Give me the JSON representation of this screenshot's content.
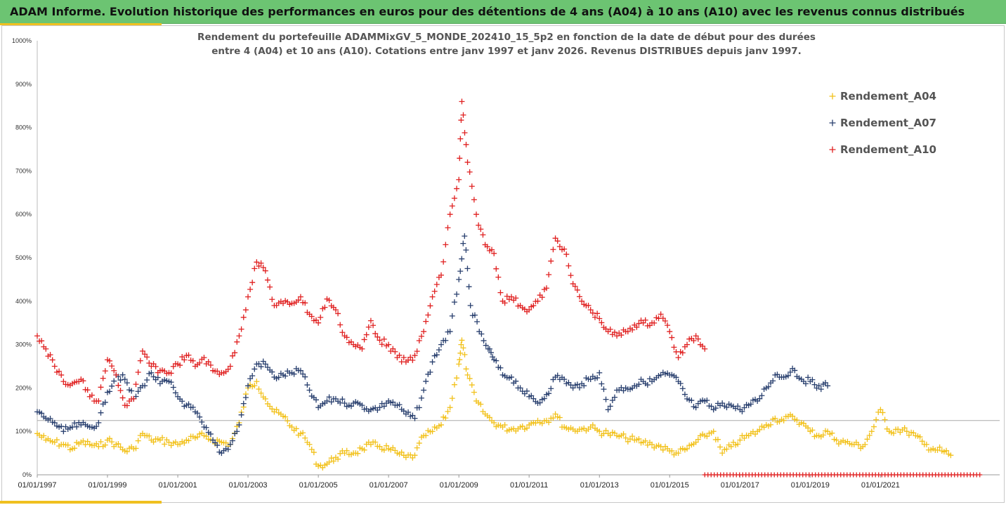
{
  "header": {
    "title": "ADAM Informe. Evolution historique des performances en euros pour des détentions de 4 ans (A04) à 10 ans (A10) avec les revenus connus distribués"
  },
  "chart_data": {
    "type": "scatter",
    "title": "",
    "subtitle_lines": [
      "Rendement du portefeuille ADAMMixGV_5_MONDE_202410_15_5p2 en fonction de la date de début pour des durées",
      "entre 4 (A04) et 10 ans (A10). Cotations entre janv 1997 et janv 2026. Revenus DISTRIBUES depuis janv 1997."
    ],
    "xlabel": "",
    "ylabel": "",
    "x_ticks": [
      "01/01/1997",
      "01/01/1999",
      "01/01/2001",
      "01/01/2003",
      "01/01/2005",
      "01/01/2007",
      "01/01/2009",
      "01/01/2011",
      "01/01/2013",
      "01/01/2015",
      "01/01/2017",
      "01/01/2019",
      "01/01/2021"
    ],
    "xlim": [
      "1997-01-01",
      "2023-11-01"
    ],
    "y_ticks": [
      "0%",
      "100%",
      "200%",
      "300%",
      "400%",
      "500%",
      "600%",
      "700%",
      "800%",
      "900%",
      "1000%"
    ],
    "ylim": [
      0,
      1000
    ],
    "legend_position": "right",
    "reference_line_y": 125,
    "series": [
      {
        "name": "Rendement_A04",
        "color": "#f2c11a",
        "marker": "+",
        "points": [
          [
            "1997-01",
            95
          ],
          [
            "1997-04",
            80
          ],
          [
            "1997-07",
            75
          ],
          [
            "1997-10",
            70
          ],
          [
            "1998-01",
            60
          ],
          [
            "1998-04",
            75
          ],
          [
            "1998-07",
            70
          ],
          [
            "1998-10",
            65
          ],
          [
            "1999-01",
            80
          ],
          [
            "1999-04",
            70
          ],
          [
            "1999-07",
            55
          ],
          [
            "1999-10",
            60
          ],
          [
            "2000-01",
            95
          ],
          [
            "2000-04",
            80
          ],
          [
            "2000-07",
            80
          ],
          [
            "2000-10",
            75
          ],
          [
            "2001-01",
            70
          ],
          [
            "2001-04",
            80
          ],
          [
            "2001-07",
            85
          ],
          [
            "2001-10",
            90
          ],
          [
            "2002-01",
            80
          ],
          [
            "2002-04",
            75
          ],
          [
            "2002-07",
            70
          ],
          [
            "2002-10",
            120
          ],
          [
            "2003-01",
            200
          ],
          [
            "2003-04",
            215
          ],
          [
            "2003-07",
            175
          ],
          [
            "2003-10",
            145
          ],
          [
            "2004-01",
            135
          ],
          [
            "2004-04",
            110
          ],
          [
            "2004-07",
            95
          ],
          [
            "2004-10",
            70
          ],
          [
            "2005-01",
            20
          ],
          [
            "2005-04",
            25
          ],
          [
            "2005-07",
            40
          ],
          [
            "2005-10",
            50
          ],
          [
            "2006-01",
            50
          ],
          [
            "2006-04",
            60
          ],
          [
            "2006-07",
            70
          ],
          [
            "2006-10",
            65
          ],
          [
            "2007-01",
            60
          ],
          [
            "2007-04",
            50
          ],
          [
            "2007-07",
            40
          ],
          [
            "2007-10",
            45
          ],
          [
            "2008-01",
            90
          ],
          [
            "2008-04",
            100
          ],
          [
            "2008-07",
            115
          ],
          [
            "2008-10",
            155
          ],
          [
            "2009-01",
            255
          ],
          [
            "2009-02",
            310
          ],
          [
            "2009-04",
            230
          ],
          [
            "2009-07",
            170
          ],
          [
            "2009-10",
            140
          ],
          [
            "2010-01",
            120
          ],
          [
            "2010-04",
            110
          ],
          [
            "2010-07",
            105
          ],
          [
            "2010-10",
            110
          ],
          [
            "2011-01",
            115
          ],
          [
            "2011-04",
            125
          ],
          [
            "2011-07",
            125
          ],
          [
            "2011-10",
            140
          ],
          [
            "2012-01",
            110
          ],
          [
            "2012-04",
            105
          ],
          [
            "2012-07",
            105
          ],
          [
            "2012-10",
            110
          ],
          [
            "2013-01",
            100
          ],
          [
            "2013-04",
            95
          ],
          [
            "2013-07",
            90
          ],
          [
            "2013-10",
            85
          ],
          [
            "2014-01",
            80
          ],
          [
            "2014-04",
            75
          ],
          [
            "2014-07",
            70
          ],
          [
            "2014-10",
            65
          ],
          [
            "2015-01",
            55
          ],
          [
            "2015-04",
            50
          ],
          [
            "2015-07",
            60
          ],
          [
            "2015-10",
            75
          ],
          [
            "2016-01",
            90
          ],
          [
            "2016-04",
            100
          ],
          [
            "2016-07",
            50
          ],
          [
            "2016-10",
            65
          ],
          [
            "2017-01",
            80
          ],
          [
            "2017-04",
            90
          ],
          [
            "2017-07",
            100
          ],
          [
            "2017-10",
            115
          ],
          [
            "2018-01",
            130
          ],
          [
            "2018-04",
            125
          ],
          [
            "2018-07",
            135
          ],
          [
            "2018-10",
            120
          ],
          [
            "2019-01",
            100
          ],
          [
            "2019-04",
            90
          ],
          [
            "2019-07",
            100
          ],
          [
            "2019-10",
            80
          ],
          [
            "2020-01",
            75
          ],
          [
            "2020-04",
            70
          ],
          [
            "2020-07",
            65
          ],
          [
            "2020-10",
            100
          ],
          [
            "2021-01",
            150
          ],
          [
            "2021-04",
            100
          ],
          [
            "2021-07",
            105
          ],
          [
            "2021-10",
            100
          ],
          [
            "2022-01",
            90
          ],
          [
            "2022-04",
            70
          ],
          [
            "2022-07",
            60
          ],
          [
            "2022-10",
            55
          ],
          [
            "2023-01",
            45
          ]
        ]
      },
      {
        "name": "Rendement_A07",
        "color": "#283f6e",
        "marker": "+",
        "points": [
          [
            "1997-01",
            145
          ],
          [
            "1997-04",
            130
          ],
          [
            "1997-07",
            120
          ],
          [
            "1997-10",
            100
          ],
          [
            "1998-01",
            110
          ],
          [
            "1998-04",
            115
          ],
          [
            "1998-07",
            110
          ],
          [
            "1998-10",
            120
          ],
          [
            "1999-01",
            190
          ],
          [
            "1999-04",
            230
          ],
          [
            "1999-07",
            220
          ],
          [
            "1999-10",
            175
          ],
          [
            "2000-01",
            205
          ],
          [
            "2000-04",
            235
          ],
          [
            "2000-07",
            210
          ],
          [
            "2000-10",
            215
          ],
          [
            "2001-01",
            180
          ],
          [
            "2001-04",
            160
          ],
          [
            "2001-07",
            145
          ],
          [
            "2001-10",
            110
          ],
          [
            "2002-01",
            80
          ],
          [
            "2002-04",
            50
          ],
          [
            "2002-07",
            70
          ],
          [
            "2002-10",
            115
          ],
          [
            "2003-01",
            205
          ],
          [
            "2003-04",
            255
          ],
          [
            "2003-07",
            255
          ],
          [
            "2003-10",
            225
          ],
          [
            "2004-01",
            230
          ],
          [
            "2004-04",
            235
          ],
          [
            "2004-07",
            240
          ],
          [
            "2004-10",
            195
          ],
          [
            "2005-01",
            155
          ],
          [
            "2005-04",
            170
          ],
          [
            "2005-07",
            175
          ],
          [
            "2005-10",
            165
          ],
          [
            "2006-01",
            165
          ],
          [
            "2006-04",
            160
          ],
          [
            "2006-07",
            150
          ],
          [
            "2006-10",
            155
          ],
          [
            "2007-01",
            170
          ],
          [
            "2007-04",
            160
          ],
          [
            "2007-07",
            140
          ],
          [
            "2007-10",
            130
          ],
          [
            "2008-01",
            195
          ],
          [
            "2008-04",
            260
          ],
          [
            "2008-07",
            300
          ],
          [
            "2008-10",
            330
          ],
          [
            "2009-01",
            450
          ],
          [
            "2009-03",
            550
          ],
          [
            "2009-05",
            390
          ],
          [
            "2009-08",
            330
          ],
          [
            "2009-11",
            290
          ],
          [
            "2010-01",
            265
          ],
          [
            "2010-04",
            230
          ],
          [
            "2010-07",
            225
          ],
          [
            "2010-10",
            200
          ],
          [
            "2011-01",
            180
          ],
          [
            "2011-04",
            165
          ],
          [
            "2011-07",
            185
          ],
          [
            "2011-10",
            225
          ],
          [
            "2012-01",
            220
          ],
          [
            "2012-04",
            200
          ],
          [
            "2012-07",
            210
          ],
          [
            "2012-10",
            220
          ],
          [
            "2013-01",
            235
          ],
          [
            "2013-04",
            150
          ],
          [
            "2013-07",
            195
          ],
          [
            "2013-10",
            200
          ],
          [
            "2014-01",
            205
          ],
          [
            "2014-04",
            215
          ],
          [
            "2014-07",
            215
          ],
          [
            "2014-10",
            230
          ],
          [
            "2015-01",
            230
          ],
          [
            "2015-04",
            215
          ],
          [
            "2015-07",
            175
          ],
          [
            "2015-10",
            155
          ],
          [
            "2016-01",
            170
          ],
          [
            "2016-04",
            150
          ],
          [
            "2016-07",
            165
          ],
          [
            "2016-10",
            160
          ],
          [
            "2017-01",
            150
          ],
          [
            "2017-04",
            160
          ],
          [
            "2017-07",
            170
          ],
          [
            "2017-10",
            200
          ],
          [
            "2018-01",
            230
          ],
          [
            "2018-04",
            225
          ],
          [
            "2018-07",
            245
          ],
          [
            "2018-10",
            220
          ],
          [
            "2019-01",
            215
          ],
          [
            "2019-04",
            205
          ],
          [
            "2019-07",
            205
          ]
        ]
      },
      {
        "name": "Rendement_A10",
        "color": "#e02020",
        "marker": "+",
        "points": [
          [
            "1997-01",
            320
          ],
          [
            "1997-04",
            290
          ],
          [
            "1997-07",
            250
          ],
          [
            "1997-10",
            215
          ],
          [
            "1998-01",
            210
          ],
          [
            "1998-04",
            220
          ],
          [
            "1998-07",
            180
          ],
          [
            "1998-10",
            170
          ],
          [
            "1999-01",
            265
          ],
          [
            "1999-04",
            230
          ],
          [
            "1999-07",
            160
          ],
          [
            "1999-10",
            175
          ],
          [
            "2000-01",
            285
          ],
          [
            "2000-04",
            250
          ],
          [
            "2000-07",
            240
          ],
          [
            "2000-10",
            235
          ],
          [
            "2001-01",
            255
          ],
          [
            "2001-04",
            275
          ],
          [
            "2001-07",
            250
          ],
          [
            "2001-10",
            270
          ],
          [
            "2002-01",
            240
          ],
          [
            "2002-04",
            235
          ],
          [
            "2002-07",
            250
          ],
          [
            "2002-10",
            320
          ],
          [
            "2003-01",
            410
          ],
          [
            "2003-04",
            490
          ],
          [
            "2003-07",
            470
          ],
          [
            "2003-10",
            390
          ],
          [
            "2004-01",
            395
          ],
          [
            "2004-04",
            395
          ],
          [
            "2004-07",
            410
          ],
          [
            "2004-10",
            370
          ],
          [
            "2005-01",
            350
          ],
          [
            "2005-04",
            405
          ],
          [
            "2005-07",
            380
          ],
          [
            "2005-10",
            320
          ],
          [
            "2006-01",
            300
          ],
          [
            "2006-04",
            290
          ],
          [
            "2006-07",
            355
          ],
          [
            "2006-10",
            310
          ],
          [
            "2007-01",
            300
          ],
          [
            "2007-04",
            270
          ],
          [
            "2007-07",
            260
          ],
          [
            "2007-10",
            275
          ],
          [
            "2008-01",
            330
          ],
          [
            "2008-04",
            410
          ],
          [
            "2008-07",
            460
          ],
          [
            "2008-10",
            600
          ],
          [
            "2009-01",
            680
          ],
          [
            "2009-02",
            860
          ],
          [
            "2009-04",
            720
          ],
          [
            "2009-07",
            600
          ],
          [
            "2009-10",
            530
          ],
          [
            "2010-01",
            510
          ],
          [
            "2010-04",
            400
          ],
          [
            "2010-07",
            410
          ],
          [
            "2010-10",
            390
          ],
          [
            "2011-01",
            380
          ],
          [
            "2011-04",
            400
          ],
          [
            "2011-07",
            430
          ],
          [
            "2011-10",
            545
          ],
          [
            "2012-01",
            520
          ],
          [
            "2012-04",
            440
          ],
          [
            "2012-07",
            400
          ],
          [
            "2012-10",
            380
          ],
          [
            "2013-01",
            360
          ],
          [
            "2013-04",
            330
          ],
          [
            "2013-07",
            320
          ],
          [
            "2013-10",
            330
          ],
          [
            "2014-01",
            345
          ],
          [
            "2014-04",
            350
          ],
          [
            "2014-07",
            350
          ],
          [
            "2014-10",
            370
          ],
          [
            "2015-01",
            330
          ],
          [
            "2015-04",
            270
          ],
          [
            "2015-07",
            300
          ],
          [
            "2015-10",
            320
          ],
          [
            "2016-01",
            290
          ]
        ]
      }
    ],
    "zero_marker_band": {
      "color": "#e02020",
      "from": "2016-01",
      "to": "2023-11",
      "value": 0
    }
  }
}
